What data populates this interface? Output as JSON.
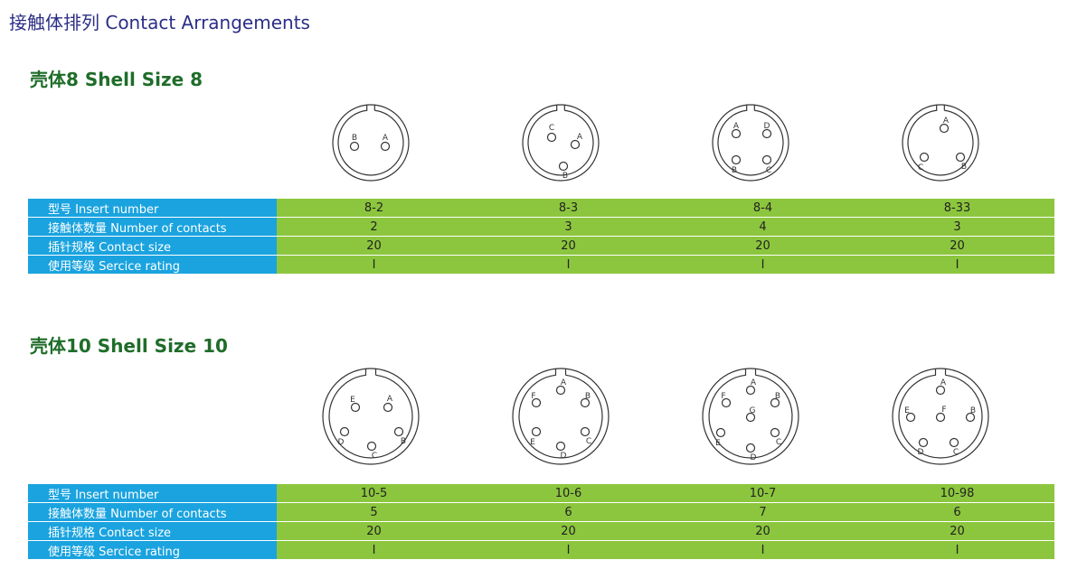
{
  "page": {
    "title": "接触体排列  Contact Arrangements"
  },
  "row_labels": {
    "insert": "型号  Insert number",
    "contacts": "接触体数量  Number of contacts",
    "size": "插针规格  Contact size",
    "rating": "使用等级  Sercice rating"
  },
  "sections": [
    {
      "title": "壳体8  Shell Size 8",
      "columns": [
        {
          "insert": "8-2",
          "contacts": "2",
          "size": "20",
          "rating": "I",
          "pins": [
            {
              "label": "B"
            },
            {
              "label": "A"
            }
          ]
        },
        {
          "insert": "8-3",
          "contacts": "3",
          "size": "20",
          "rating": "I",
          "pins": [
            {
              "label": "C"
            },
            {
              "label": "A"
            },
            {
              "label": "B"
            }
          ]
        },
        {
          "insert": "8-4",
          "contacts": "4",
          "size": "20",
          "rating": "I",
          "pins": [
            {
              "label": "A"
            },
            {
              "label": "D"
            },
            {
              "label": "B"
            },
            {
              "label": "C"
            }
          ]
        },
        {
          "insert": "8-33",
          "contacts": "3",
          "size": "20",
          "rating": "I",
          "pins": [
            {
              "label": "A"
            },
            {
              "label": "C"
            },
            {
              "label": "B"
            }
          ]
        }
      ]
    },
    {
      "title": "壳体10  Shell Size 10",
      "columns": [
        {
          "insert": "10-5",
          "contacts": "5",
          "size": "20",
          "rating": "I",
          "pins": [
            {
              "label": "E"
            },
            {
              "label": "A"
            },
            {
              "label": "D"
            },
            {
              "label": "B"
            },
            {
              "label": "C"
            }
          ]
        },
        {
          "insert": "10-6",
          "contacts": "6",
          "size": "20",
          "rating": "I",
          "pins": [
            {
              "label": "A"
            },
            {
              "label": "F"
            },
            {
              "label": "B"
            },
            {
              "label": "E"
            },
            {
              "label": "C"
            },
            {
              "label": "D"
            }
          ]
        },
        {
          "insert": "10-7",
          "contacts": "7",
          "size": "20",
          "rating": "I",
          "pins": [
            {
              "label": "A"
            },
            {
              "label": "F"
            },
            {
              "label": "B"
            },
            {
              "label": "G"
            },
            {
              "label": "E"
            },
            {
              "label": "C"
            },
            {
              "label": "D"
            }
          ]
        },
        {
          "insert": "10-98",
          "contacts": "6",
          "size": "20",
          "rating": "I",
          "pins": [
            {
              "label": "A"
            },
            {
              "label": "E"
            },
            {
              "label": "F"
            },
            {
              "label": "B"
            },
            {
              "label": "D"
            },
            {
              "label": "C"
            }
          ]
        }
      ]
    }
  ]
}
